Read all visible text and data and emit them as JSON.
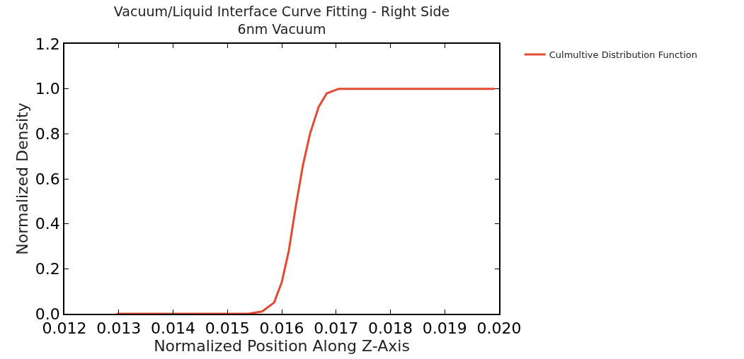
{
  "chart_data": {
    "type": "line",
    "title": "Vacuum/Liquid Interface Curve Fitting - Right Side",
    "subtitle": "6nm Vacuum",
    "xlabel": "Normalized Position Along Z-Axis",
    "ylabel": "Normalized Density",
    "x": [
      0.01296,
      0.0145,
      0.01538,
      0.01564,
      0.01586,
      0.016,
      0.01613,
      0.01626,
      0.01639,
      0.01652,
      0.01668,
      0.01683,
      0.01705,
      0.018,
      0.01992
    ],
    "series": [
      {
        "name": "Culmultive Distribution Function",
        "color": "#e24a33",
        "values": [
          0,
          0,
          0,
          0.01,
          0.05,
          0.14,
          0.28,
          0.48,
          0.66,
          0.8,
          0.92,
          0.98,
          1,
          1,
          1
        ]
      }
    ],
    "xlim": [
      0.012,
      0.02
    ],
    "xticks": [
      0.012,
      0.013,
      0.014,
      0.015,
      0.016,
      0.017,
      0.018,
      0.019,
      {
        "value": 0.02,
        "label": "0.020"
      }
    ],
    "ylim": [
      0,
      1.2
    ],
    "yticks": [
      {
        "value": 0,
        "label": "0.0"
      },
      0.2,
      0.4,
      0.6,
      0.8,
      {
        "value": 1,
        "label": "1.0"
      },
      1.2
    ],
    "grid": false,
    "legend": "top right",
    "marker": "none",
    "line_style": "solid"
  }
}
